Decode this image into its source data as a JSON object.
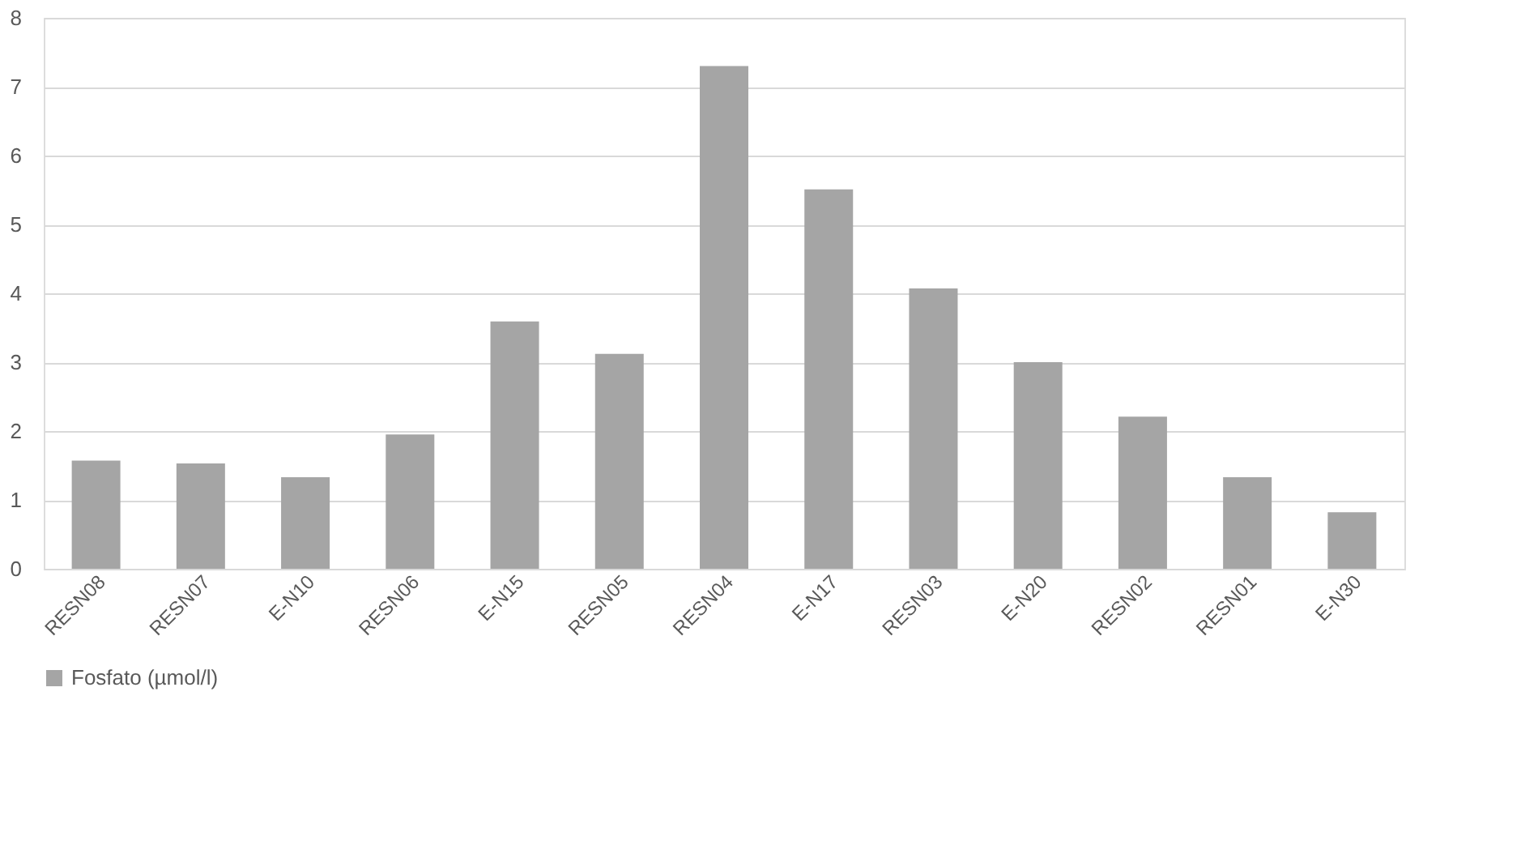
{
  "chart_data": {
    "type": "bar",
    "categories": [
      "RESN08",
      "RESN07",
      "E-N10",
      "RESN06",
      "E-N15",
      "RESN05",
      "RESN04",
      "E-N17",
      "RESN03",
      "E-N20",
      "RESN02",
      "RESN01",
      "E-N30"
    ],
    "series": [
      {
        "name": "Fosfato (µmol/l)",
        "color": "#a5a5a5",
        "values": [
          1.57,
          1.53,
          1.33,
          1.95,
          3.59,
          3.12,
          7.3,
          5.51,
          4.07,
          3.0,
          2.21,
          1.33,
          0.82
        ]
      }
    ],
    "ylim": [
      0,
      8
    ],
    "yticks": [
      0,
      1,
      2,
      3,
      4,
      5,
      6,
      7,
      8
    ],
    "grid": "y",
    "legend": "bottom"
  }
}
